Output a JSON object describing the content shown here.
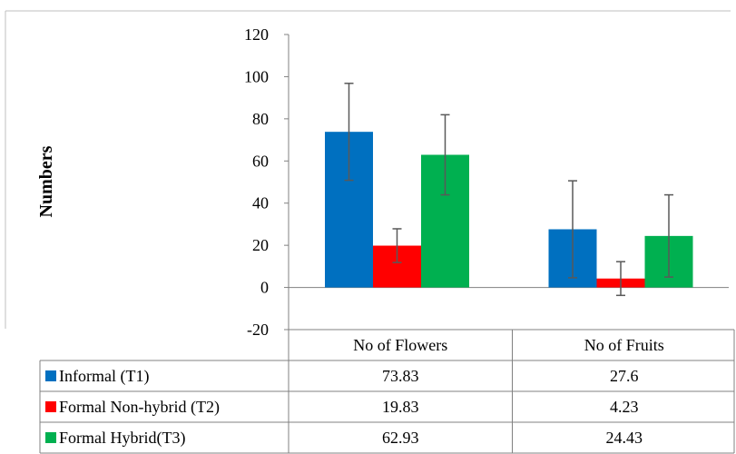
{
  "chart_data": {
    "type": "bar",
    "title": "",
    "xlabel": "",
    "ylabel": "Numbers",
    "ylim": [
      -20,
      120
    ],
    "yticks": [
      -20,
      0,
      20,
      40,
      60,
      80,
      100,
      120
    ],
    "categories": [
      "No of Flowers",
      "No of Fruits"
    ],
    "series": [
      {
        "name": "Informal (T1)",
        "color": "#0070C0",
        "values": [
          73.83,
          27.6
        ],
        "value_labels": [
          "73.83",
          "27.6"
        ],
        "error": [
          23,
          23
        ]
      },
      {
        "name": "Formal Non-hybrid (T2)",
        "color": "#FF0000",
        "values": [
          19.83,
          4.23
        ],
        "value_labels": [
          "19.83",
          "4.23"
        ],
        "error": [
          8,
          8
        ]
      },
      {
        "name": "Formal Hybrid(T3)",
        "color": "#00B050",
        "values": [
          62.93,
          24.43
        ],
        "value_labels": [
          "62.93",
          "24.43"
        ],
        "error": [
          19,
          19.5
        ]
      }
    ],
    "grid": false,
    "legend": "data-table"
  }
}
